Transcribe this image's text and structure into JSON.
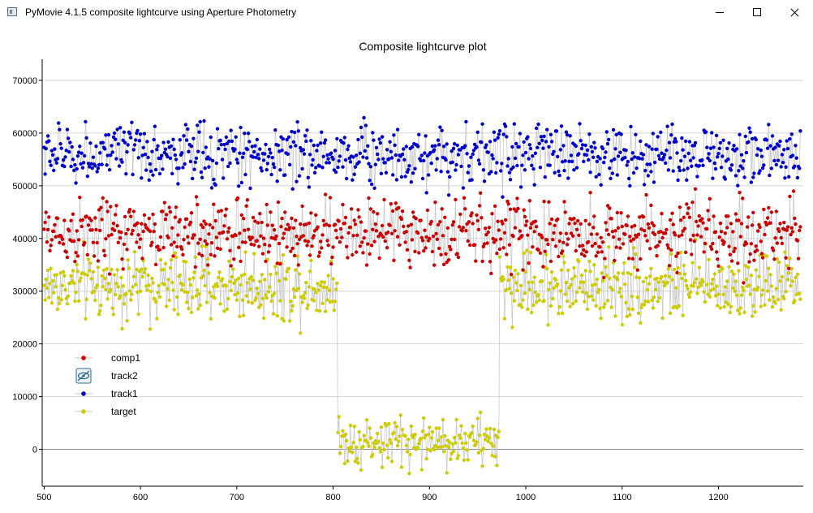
{
  "window": {
    "title": "PyMovie 4.1.5 composite lightcurve using Aperture Photometry",
    "icon": "app-window-icon",
    "buttons": [
      "minimize",
      "maximize",
      "close"
    ]
  },
  "chart_data": {
    "type": "scatter",
    "title": "Composite lightcurve plot",
    "xlabel": "",
    "ylabel": "",
    "xlim": [
      498,
      1288
    ],
    "ylim": [
      -7000,
      74000
    ],
    "x_ticks": [
      500,
      600,
      700,
      800,
      900,
      1000,
      1100,
      1200
    ],
    "y_ticks": [
      0,
      10000,
      20000,
      30000,
      40000,
      50000,
      60000,
      70000
    ],
    "grid": true,
    "legend_position": "lower-left",
    "x": {
      "start": 500,
      "end": 1285,
      "step": 1
    },
    "series": [
      {
        "name": "comp1",
        "color": "#cc0000",
        "marker": "dot",
        "connected": true,
        "line_color": "#c8c8c8",
        "mean": 41000,
        "spread": 4500,
        "visible": true
      },
      {
        "name": "track2",
        "color": "#2e6b8e",
        "marker": "none",
        "connected": false,
        "visible": false,
        "legend_icon": "hidden-eye-icon"
      },
      {
        "name": "track1",
        "color": "#0000cc",
        "marker": "dot",
        "connected": true,
        "line_color": "#c8c8c8",
        "mean": 56000,
        "spread": 4000,
        "visible": true
      },
      {
        "name": "target",
        "color": "#cccc00",
        "marker": "dot",
        "connected": true,
        "line_color": "#c8c8c8",
        "mean": 31000,
        "spread": 4500,
        "visible": true,
        "event": {
          "start": 805,
          "end": 972,
          "mean": 1500,
          "spread": 3500
        }
      }
    ]
  }
}
